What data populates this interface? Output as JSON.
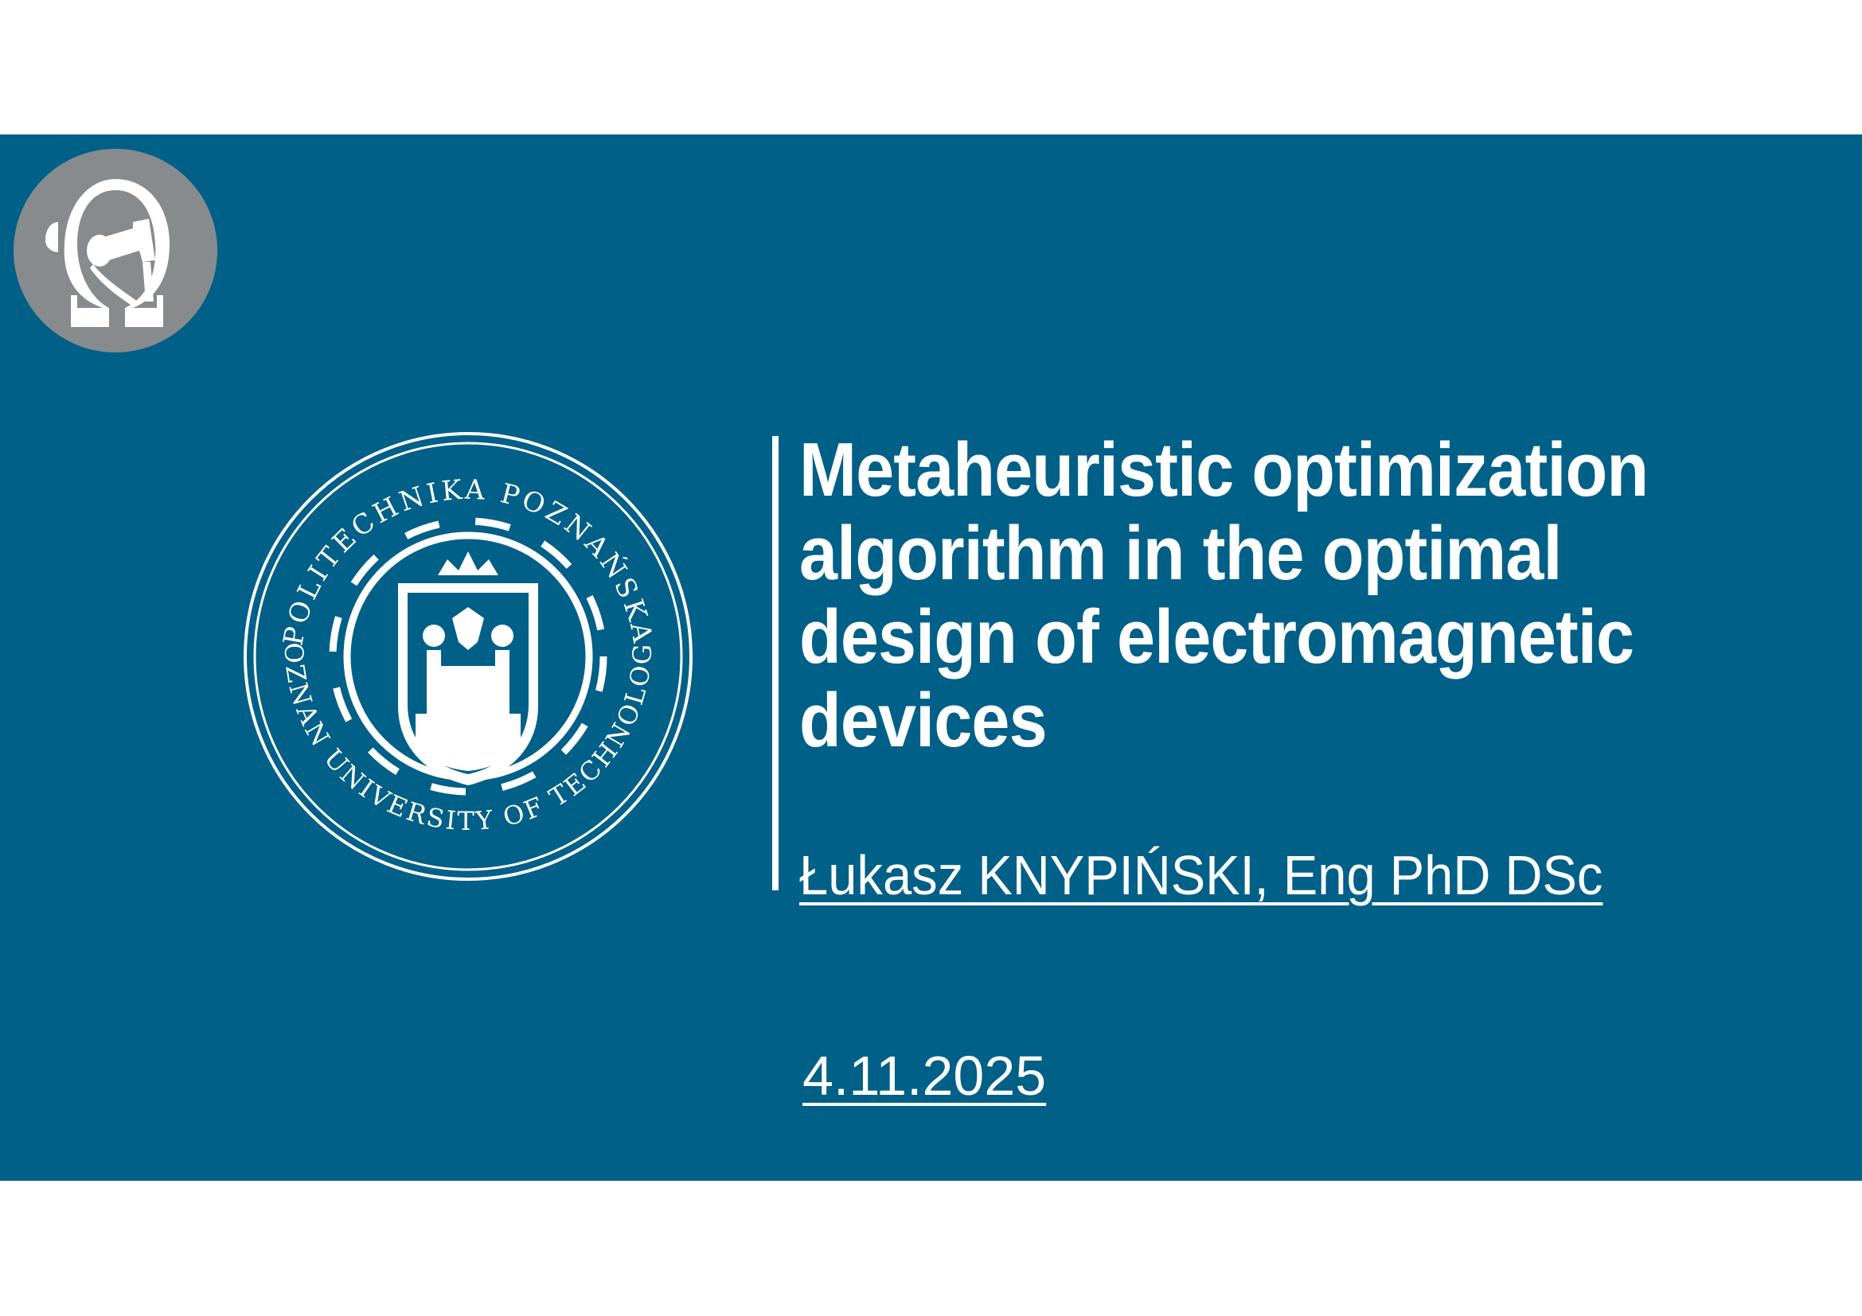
{
  "slide": {
    "title_lines": [
      "Metaheuristic optimization",
      "algorithm in the optimal",
      "design of electromagnetic",
      "devices"
    ],
    "author": "Łukasz KNYPIŃSKI, Eng PhD DSc",
    "date": "4.11.2025"
  },
  "seal": {
    "top_text": "POLITECHNIKA POZNAŃSKA",
    "bottom_text": "POZNAN UNIVERSITY OF TECHNOLOGY"
  },
  "logo": {
    "icon": "omega-robot-arm-icon"
  },
  "colors": {
    "band": "#006087",
    "logo_circle": "#878b8e",
    "text": "#ffffff"
  }
}
